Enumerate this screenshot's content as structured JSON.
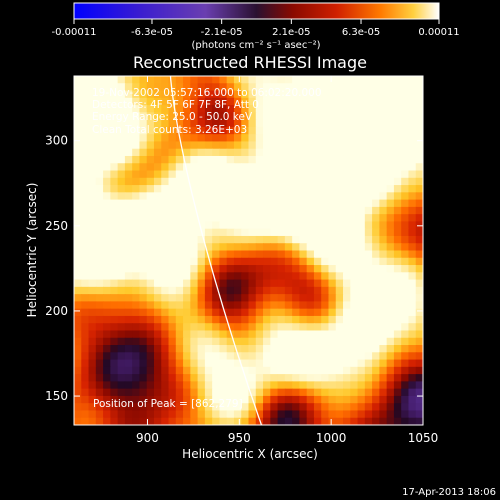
{
  "chart_data": {
    "type": "heatmap",
    "title": "Reconstructed RHESSI Image",
    "xlabel": "Heliocentric X (arcsec)",
    "ylabel": "Heliocentric Y (arcsec)",
    "xlim": [
      860,
      1050
    ],
    "ylim": [
      133,
      338
    ],
    "x_ticks": [
      900,
      950,
      1000,
      1050
    ],
    "y_ticks": [
      150,
      200,
      250,
      300
    ],
    "colorbar": {
      "label": "(photons cm⁻² s⁻¹ asec⁻²)",
      "range": [
        -0.00011,
        0.00011
      ],
      "tick_values": [
        -0.00011,
        -6.3e-05,
        -2.1e-05,
        2.1e-05,
        6.3e-05,
        0.00011
      ],
      "tick_labels": [
        "-0.00011",
        "-6.3e-05",
        "-2.1e-05",
        "2.1e-05",
        "6.3e-05",
        "0.00011"
      ]
    },
    "annotations": [
      "19-Nov-2002 05:57:16.000 to 06:02:20.000",
      "Detectors: 4F 5F 6F 7F 8F, Att 0",
      "Energy Range: 25.0 - 50.0 keV",
      "Clean     Total counts: 3.26E+03"
    ],
    "peak_label": "Position of Peak = [862,279]",
    "peak_position": [
      862,
      279
    ],
    "limb": "solar limb drawn as white curve",
    "colormap": "blue-purple-red-orange-yellow-white"
  },
  "footer": "17-Apr-2013 18:06",
  "colors": {
    "background": "#000000",
    "text": "#ffffff",
    "limb": "#ffffff"
  }
}
